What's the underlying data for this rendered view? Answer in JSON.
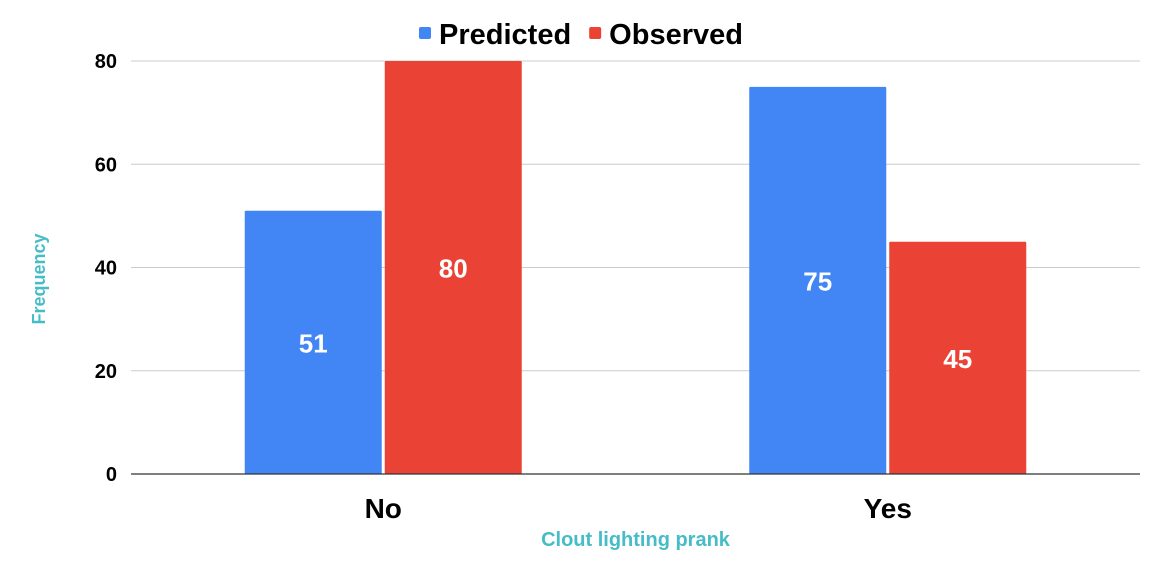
{
  "chart_data": {
    "type": "bar",
    "categories": [
      "No",
      "Yes"
    ],
    "series": [
      {
        "name": "Predicted",
        "values": [
          51,
          75
        ],
        "color": "#4285f4"
      },
      {
        "name": "Observed",
        "values": [
          80,
          45
        ],
        "color": "#ea4335"
      }
    ],
    "xlabel": "Clout lighting prank",
    "ylabel": "Frequency",
    "ylim": [
      0,
      80
    ],
    "yticks": [
      "0",
      "20",
      "40",
      "60",
      "80"
    ],
    "grid": true,
    "legend_position": "top-center",
    "axis_title_color": "#46bdc6",
    "data_labels": true
  }
}
